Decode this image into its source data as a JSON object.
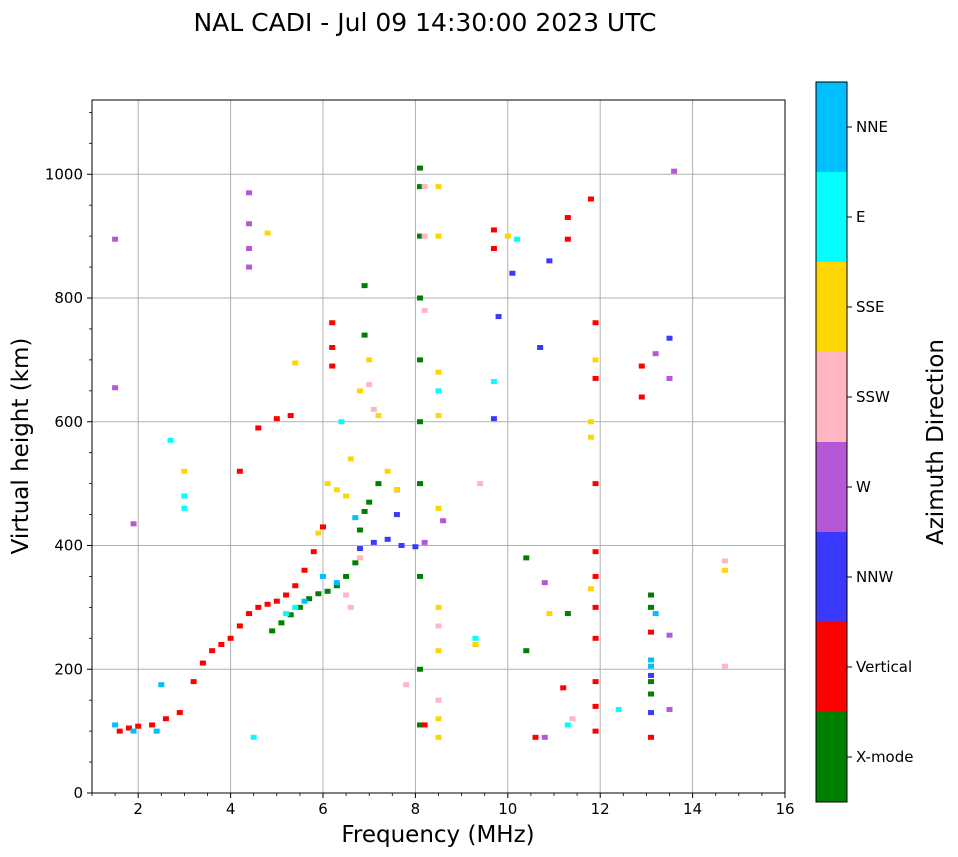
{
  "chart_data": {
    "type": "scatter",
    "title": "NAL CADI - Jul 09 14:30:00 2023 UTC",
    "xlabel": "Frequency (MHz)",
    "ylabel": "Virtual height (km)",
    "xlim": [
      1,
      16
    ],
    "ylim": [
      0,
      1120
    ],
    "x_ticks": [
      2,
      4,
      6,
      8,
      10,
      12,
      14,
      16
    ],
    "y_ticks": [
      0,
      200,
      400,
      600,
      800,
      1000
    ],
    "x_minor_step": 0.5,
    "y_minor_step": 50,
    "grid": true,
    "colorbar": {
      "label": "Azimuth Direction",
      "categories": [
        {
          "name": "X-mode",
          "color": "#008000"
        },
        {
          "name": "Vertical",
          "color": "#ff0000"
        },
        {
          "name": "NNW",
          "color": "#3a3aff"
        },
        {
          "name": "W",
          "color": "#b657d6"
        },
        {
          "name": "SSW",
          "color": "#ffb6c1"
        },
        {
          "name": "SSE",
          "color": "#ffd700"
        },
        {
          "name": "E",
          "color": "#00ffff"
        },
        {
          "name": "NNE",
          "color": "#00bfff"
        }
      ]
    },
    "series": [
      {
        "name": "X-mode",
        "points": [
          [
            4.9,
            262
          ],
          [
            5.1,
            275
          ],
          [
            5.3,
            288
          ],
          [
            5.5,
            300
          ],
          [
            5.7,
            314
          ],
          [
            5.9,
            322
          ],
          [
            6.1,
            326
          ],
          [
            6.3,
            335
          ],
          [
            6.5,
            350
          ],
          [
            6.7,
            372
          ],
          [
            6.8,
            425
          ],
          [
            6.9,
            455
          ],
          [
            7.0,
            470
          ],
          [
            7.2,
            500
          ],
          [
            8.1,
            1010
          ],
          [
            8.1,
            980
          ],
          [
            8.1,
            900
          ],
          [
            8.1,
            800
          ],
          [
            8.1,
            700
          ],
          [
            8.1,
            600
          ],
          [
            8.1,
            500
          ],
          [
            8.1,
            350
          ],
          [
            8.1,
            200
          ],
          [
            8.1,
            110
          ],
          [
            13.1,
            320
          ],
          [
            13.1,
            300
          ],
          [
            13.1,
            180
          ],
          [
            13.1,
            160
          ],
          [
            6.9,
            820
          ],
          [
            6.9,
            740
          ],
          [
            10.4,
            380
          ],
          [
            10.4,
            230
          ],
          [
            11.3,
            290
          ]
        ]
      },
      {
        "name": "Vertical",
        "points": [
          [
            1.6,
            100
          ],
          [
            1.8,
            105
          ],
          [
            2.0,
            108
          ],
          [
            2.3,
            110
          ],
          [
            2.6,
            120
          ],
          [
            2.9,
            130
          ],
          [
            3.2,
            180
          ],
          [
            3.4,
            210
          ],
          [
            3.6,
            230
          ],
          [
            3.8,
            240
          ],
          [
            4.0,
            250
          ],
          [
            4.2,
            270
          ],
          [
            4.4,
            290
          ],
          [
            4.6,
            300
          ],
          [
            4.8,
            305
          ],
          [
            5.0,
            310
          ],
          [
            5.2,
            320
          ],
          [
            5.4,
            335
          ],
          [
            5.6,
            360
          ],
          [
            5.8,
            390
          ],
          [
            6.0,
            430
          ],
          [
            6.2,
            760
          ],
          [
            6.2,
            720
          ],
          [
            6.2,
            690
          ],
          [
            4.2,
            520
          ],
          [
            4.6,
            590
          ],
          [
            5.0,
            605
          ],
          [
            5.3,
            610
          ],
          [
            11.9,
            390
          ],
          [
            11.9,
            350
          ],
          [
            11.9,
            300
          ],
          [
            11.9,
            250
          ],
          [
            11.9,
            180
          ],
          [
            11.9,
            140
          ],
          [
            11.9,
            100
          ],
          [
            11.8,
            960
          ],
          [
            11.9,
            760
          ],
          [
            11.9,
            670
          ],
          [
            11.9,
            500
          ],
          [
            12.9,
            640
          ],
          [
            12.9,
            690
          ],
          [
            13.1,
            260
          ],
          [
            13.1,
            90
          ],
          [
            9.7,
            910
          ],
          [
            9.7,
            880
          ],
          [
            11.3,
            930
          ],
          [
            11.3,
            895
          ],
          [
            10.6,
            90
          ],
          [
            11.2,
            170
          ],
          [
            8.2,
            110
          ]
        ]
      },
      {
        "name": "NNW",
        "points": [
          [
            6.8,
            395
          ],
          [
            7.1,
            405
          ],
          [
            7.4,
            410
          ],
          [
            7.7,
            400
          ],
          [
            8.0,
            398
          ],
          [
            7.6,
            450
          ],
          [
            7.6,
            490
          ],
          [
            10.1,
            840
          ],
          [
            10.7,
            720
          ],
          [
            10.9,
            860
          ],
          [
            13.5,
            735
          ],
          [
            13.1,
            190
          ],
          [
            13.1,
            130
          ],
          [
            9.8,
            770
          ],
          [
            9.7,
            605
          ]
        ]
      },
      {
        "name": "W",
        "points": [
          [
            4.4,
            970
          ],
          [
            4.4,
            920
          ],
          [
            4.4,
            880
          ],
          [
            4.4,
            850
          ],
          [
            8.6,
            440
          ],
          [
            8.2,
            405
          ],
          [
            13.2,
            710
          ],
          [
            13.5,
            670
          ],
          [
            13.6,
            1005
          ],
          [
            13.5,
            255
          ],
          [
            13.5,
            135
          ],
          [
            10.8,
            340
          ],
          [
            10.8,
            90
          ],
          [
            1.5,
            895
          ],
          [
            1.5,
            655
          ],
          [
            1.9,
            435
          ]
        ]
      },
      {
        "name": "SSW",
        "points": [
          [
            6.5,
            320
          ],
          [
            6.6,
            300
          ],
          [
            6.8,
            380
          ],
          [
            7.0,
            660
          ],
          [
            7.1,
            620
          ],
          [
            14.7,
            375
          ],
          [
            14.7,
            205
          ],
          [
            9.4,
            500
          ],
          [
            8.2,
            980
          ],
          [
            8.2,
            900
          ],
          [
            8.2,
            780
          ],
          [
            8.5,
            270
          ],
          [
            8.5,
            150
          ],
          [
            7.8,
            175
          ],
          [
            11.4,
            120
          ]
        ]
      },
      {
        "name": "SSE",
        "points": [
          [
            3.0,
            520
          ],
          [
            3.0,
            480
          ],
          [
            5.9,
            420
          ],
          [
            6.1,
            500
          ],
          [
            6.3,
            490
          ],
          [
            6.5,
            480
          ],
          [
            6.6,
            540
          ],
          [
            6.8,
            650
          ],
          [
            7.0,
            700
          ],
          [
            7.2,
            610
          ],
          [
            7.4,
            520
          ],
          [
            7.6,
            490
          ],
          [
            8.5,
            980
          ],
          [
            8.5,
            900
          ],
          [
            8.5,
            680
          ],
          [
            8.5,
            610
          ],
          [
            8.5,
            460
          ],
          [
            8.5,
            300
          ],
          [
            8.5,
            230
          ],
          [
            8.5,
            120
          ],
          [
            8.5,
            90
          ],
          [
            4.8,
            905
          ],
          [
            5.4,
            695
          ],
          [
            10.0,
            900
          ],
          [
            11.8,
            600
          ],
          [
            11.8,
            575
          ],
          [
            11.8,
            330
          ],
          [
            9.3,
            240
          ],
          [
            11.9,
            700
          ],
          [
            14.7,
            360
          ],
          [
            10.9,
            290
          ]
        ]
      },
      {
        "name": "E",
        "points": [
          [
            3.0,
            480
          ],
          [
            3.0,
            460
          ],
          [
            5.2,
            290
          ],
          [
            5.4,
            300
          ],
          [
            4.5,
            90
          ],
          [
            8.5,
            650
          ],
          [
            10.2,
            895
          ],
          [
            9.7,
            665
          ],
          [
            12.4,
            135
          ],
          [
            11.3,
            110
          ],
          [
            9.3,
            250
          ],
          [
            6.4,
            600
          ],
          [
            2.7,
            570
          ]
        ]
      },
      {
        "name": "NNE",
        "points": [
          [
            1.5,
            110
          ],
          [
            1.9,
            100
          ],
          [
            2.4,
            100
          ],
          [
            2.5,
            175
          ],
          [
            5.6,
            310
          ],
          [
            6.0,
            350
          ],
          [
            6.7,
            445
          ],
          [
            6.3,
            340
          ],
          [
            13.1,
            215
          ],
          [
            13.1,
            205
          ],
          [
            13.2,
            290
          ]
        ]
      }
    ]
  }
}
